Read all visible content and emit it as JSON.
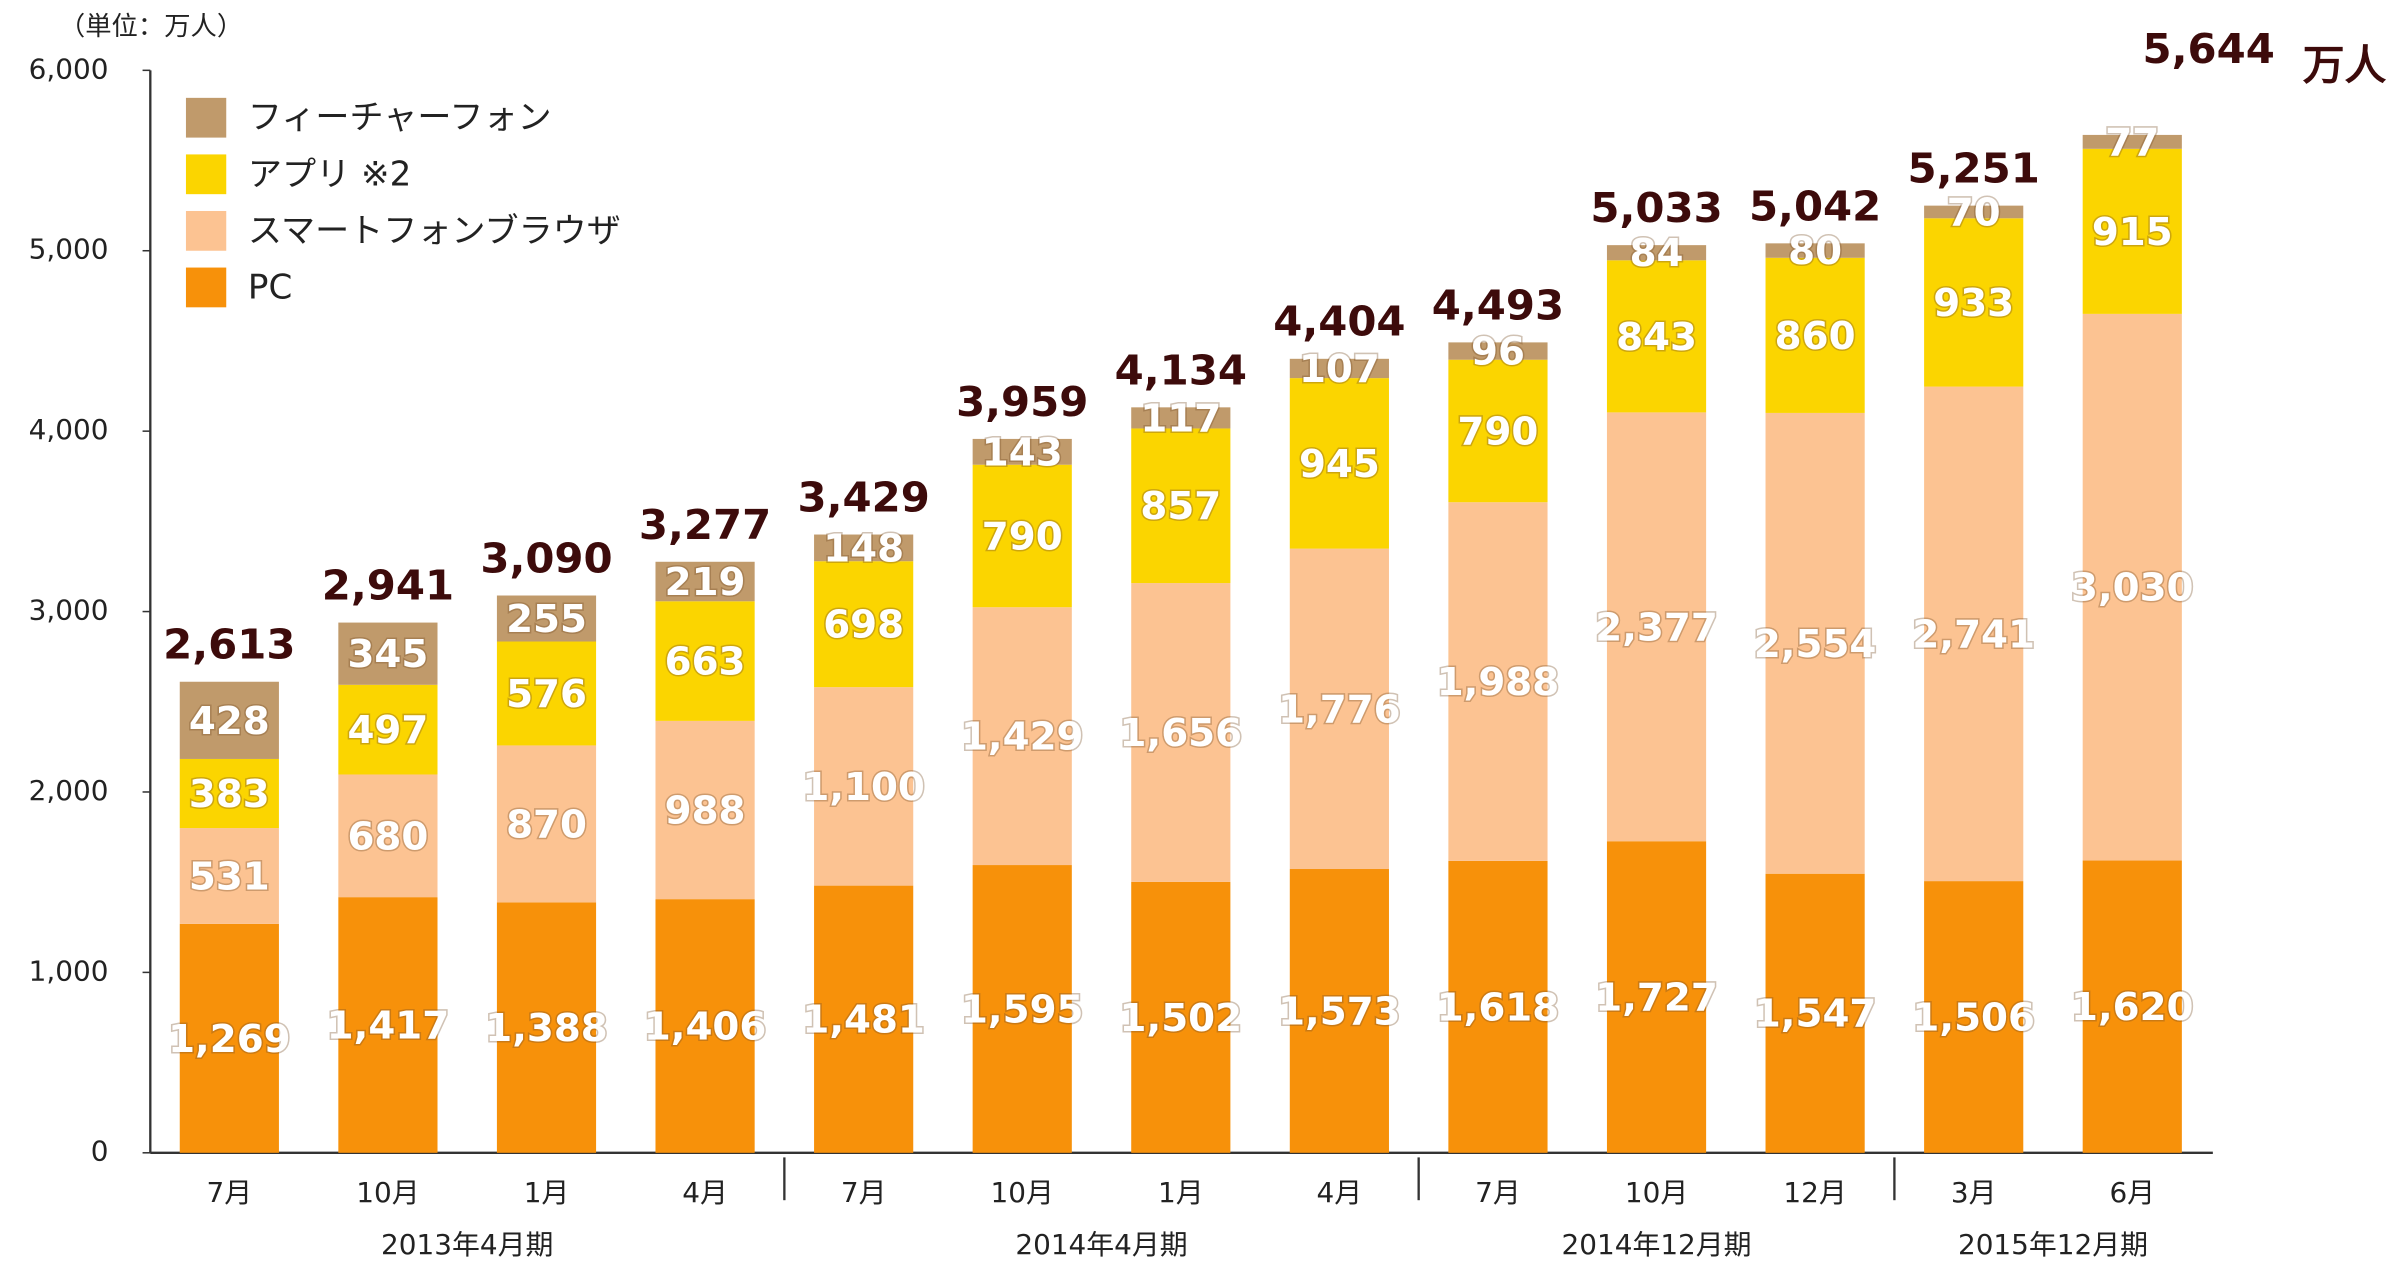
{
  "chart_data": {
    "type": "bar",
    "stacked": true,
    "unit_label": "（単位：万人）",
    "categories": [
      "7月",
      "10月",
      "1月",
      "4月",
      "7月",
      "10月",
      "1月",
      "4月",
      "7月",
      "10月",
      "12月",
      "3月",
      "6月"
    ],
    "group_labels": [
      "2013年4月期",
      "2014年4月期",
      "2014年12月期",
      "2015年12月期"
    ],
    "group_sizes": [
      4,
      4,
      3,
      2
    ],
    "series": [
      {
        "name": "PC",
        "color": "#f7910a",
        "values": [
          1269,
          1417,
          1388,
          1406,
          1481,
          1595,
          1502,
          1573,
          1618,
          1727,
          1547,
          1506,
          1620
        ],
        "value_labels": [
          "1,269",
          "1,417",
          "1,388",
          "1,406",
          "1,481",
          "1,595",
          "1,502",
          "1,573",
          "1,618",
          "1,727",
          "1,547",
          "1,506",
          "1,620"
        ]
      },
      {
        "name": "スマートフォンブラウザ",
        "color": "#fcc392",
        "values": [
          531,
          680,
          870,
          988,
          1100,
          1429,
          1656,
          1776,
          1988,
          2377,
          2554,
          2741,
          3030
        ],
        "value_labels": [
          "531",
          "680",
          "870",
          "988",
          "1,100",
          "1,429",
          "1,656",
          "1,776",
          "1,988",
          "2,377",
          "2,554",
          "2,741",
          "3,030"
        ]
      },
      {
        "name": "アプリ ※2",
        "color": "#fbd500",
        "values": [
          383,
          497,
          576,
          663,
          698,
          790,
          857,
          945,
          790,
          843,
          860,
          933,
          915
        ]
      },
      {
        "name": "フィーチャーフォン",
        "color": "#c09a6b",
        "values": [
          428,
          345,
          255,
          219,
          148,
          143,
          117,
          107,
          96,
          84,
          80,
          70,
          77
        ]
      }
    ],
    "totals": [
      2613,
      2941,
      3090,
      3277,
      3429,
      3959,
      4134,
      4404,
      4493,
      5033,
      5042,
      5251,
      5644
    ],
    "totals_labels": [
      "2,613",
      "2,941",
      "3,090",
      "3,277",
      "3,429",
      "3,959",
      "4,134",
      "4,404",
      "4,493",
      "5,033",
      "5,042",
      "5,251",
      "5,644"
    ],
    "total_unit": "万人",
    "ylim": [
      0,
      6000
    ],
    "yticks": [
      0,
      {
        "value": 1000,
        "label": "1,000"
      },
      {
        "value": 2000,
        "label": "2,000"
      },
      {
        "value": 3000,
        "label": "3,000"
      },
      {
        "value": 4000,
        "label": "4,000"
      },
      {
        "value": 5000,
        "label": "5,000"
      },
      {
        "value": 6000,
        "label": "6,000"
      }
    ]
  }
}
